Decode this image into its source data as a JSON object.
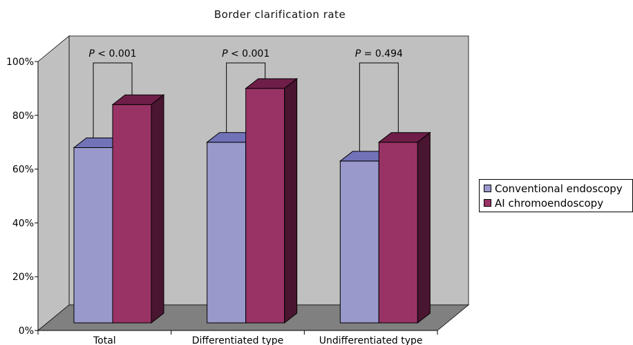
{
  "colors": {
    "wall": "#c0c0c0",
    "floor": "#808080",
    "series_front": [
      "#9999cc",
      "#993366"
    ],
    "series_top": [
      "#7272b8",
      "#6e1e48"
    ],
    "series_side": [
      "#3c3c7a",
      "#4a1530"
    ]
  },
  "chart_data": {
    "type": "bar",
    "title": "Border clarification rate",
    "xlabel": "",
    "ylabel": "",
    "ylim": [
      0,
      100
    ],
    "yticks": [
      "0%",
      "20%",
      "40%",
      "60%",
      "80%",
      "100%"
    ],
    "grid": false,
    "legend_position": "right",
    "categories": [
      "Total",
      "Differentiated type",
      "Undifferentiated type"
    ],
    "series": [
      {
        "name": "Conventional endoscopy",
        "values": [
          68,
          70,
          63
        ]
      },
      {
        "name": "AI chromoendoscopy",
        "values": [
          84,
          90,
          70
        ]
      }
    ],
    "annotations": [
      {
        "italic": "P",
        "text": " < 0.001"
      },
      {
        "italic": "P",
        "text": " < 0.001"
      },
      {
        "italic": "P",
        "text": " = 0.494"
      }
    ]
  }
}
